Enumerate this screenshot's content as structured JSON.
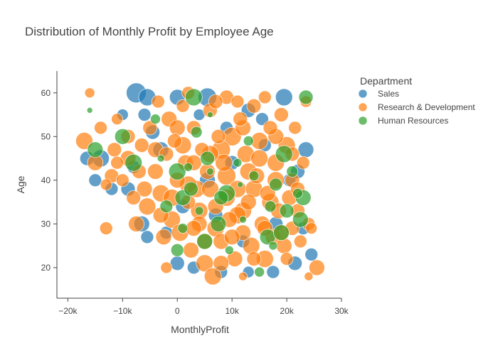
{
  "chart_data": {
    "type": "scatter",
    "title": "Distribution of Monthly Profit by Employee Age",
    "xlabel": "MonthlyProfit",
    "ylabel": "Age",
    "xlim": [
      -22000,
      30000
    ],
    "ylim": [
      13,
      65
    ],
    "x_ticks": [
      -20000,
      -10000,
      0,
      10000,
      20000,
      30000
    ],
    "x_tick_labels": [
      "−20k",
      "−10k",
      "0",
      "10k",
      "20k",
      "30k"
    ],
    "y_ticks": [
      20,
      30,
      40,
      50,
      60
    ],
    "y_tick_labels": [
      "20",
      "30",
      "40",
      "50",
      "60"
    ],
    "grid": false,
    "legend": {
      "title": "Department",
      "position": "top-right"
    },
    "size_encoding": "marker area varies per employee; no size legend shown",
    "series": [
      {
        "name": "Sales",
        "color": "#1f77b4",
        "points": [
          [
            -7500,
            60,
            14
          ],
          [
            -5500,
            59,
            12
          ],
          [
            0,
            59,
            11
          ],
          [
            5500,
            59,
            13
          ],
          [
            19500,
            59,
            12
          ],
          [
            -14000,
            45,
            12
          ],
          [
            -16500,
            45,
            10
          ],
          [
            -15000,
            40,
            9
          ],
          [
            -12000,
            38,
            9
          ],
          [
            -9000,
            38,
            10
          ],
          [
            -6000,
            55,
            9
          ],
          [
            -4500,
            51,
            10
          ],
          [
            -3000,
            47,
            11
          ],
          [
            -6500,
            30,
            11
          ],
          [
            -5500,
            27,
            9
          ],
          [
            0,
            21,
            10
          ],
          [
            3000,
            20,
            9
          ],
          [
            8000,
            19,
            9
          ],
          [
            13000,
            19,
            8
          ],
          [
            17500,
            19,
            9
          ],
          [
            21500,
            21,
            10
          ],
          [
            24500,
            23,
            9
          ],
          [
            23500,
            47,
            11
          ],
          [
            22000,
            42,
            10
          ],
          [
            20500,
            40,
            9
          ],
          [
            13000,
            56,
            10
          ],
          [
            15500,
            54,
            9
          ],
          [
            10000,
            44,
            10
          ],
          [
            5500,
            40,
            11
          ],
          [
            7000,
            32,
            10
          ],
          [
            1000,
            34,
            10
          ],
          [
            -2000,
            28,
            9
          ],
          [
            18000,
            30,
            10
          ],
          [
            23000,
            29,
            9
          ],
          [
            -8000,
            43,
            9
          ],
          [
            9000,
            52,
            9
          ],
          [
            4000,
            55,
            8
          ],
          [
            -10000,
            55,
            8
          ],
          [
            16000,
            48,
            9
          ],
          [
            12000,
            26,
            9
          ]
        ]
      },
      {
        "name": "Research & Development",
        "color": "#ff7f0e",
        "points": [
          [
            -16000,
            60,
            7
          ],
          [
            -17000,
            49,
            12
          ],
          [
            -13000,
            29,
            9
          ],
          [
            -14000,
            52,
            9
          ],
          [
            -15000,
            44,
            11
          ],
          [
            -12000,
            41,
            10
          ],
          [
            -11000,
            54,
            8
          ],
          [
            -11500,
            47,
            10
          ],
          [
            -10000,
            40,
            9
          ],
          [
            -9000,
            45,
            11
          ],
          [
            -8000,
            36,
            10
          ],
          [
            -7500,
            30,
            11
          ],
          [
            -6500,
            48,
            10
          ],
          [
            -5500,
            34,
            12
          ],
          [
            -5000,
            52,
            10
          ],
          [
            -4000,
            42,
            11
          ],
          [
            -3500,
            58,
            9
          ],
          [
            -3000,
            37,
            12
          ],
          [
            -2500,
            27,
            11
          ],
          [
            -2000,
            46,
            10
          ],
          [
            -1500,
            54,
            11
          ],
          [
            -1000,
            31,
            12
          ],
          [
            -500,
            49,
            10
          ],
          [
            0,
            40,
            11
          ],
          [
            500,
            28,
            12
          ],
          [
            1000,
            57,
            9
          ],
          [
            1500,
            44,
            11
          ],
          [
            2000,
            35,
            10
          ],
          [
            2500,
            24,
            11
          ],
          [
            3000,
            52,
            10
          ],
          [
            3500,
            38,
            12
          ],
          [
            4000,
            30,
            11
          ],
          [
            4500,
            47,
            10
          ],
          [
            5000,
            21,
            12
          ],
          [
            5500,
            42,
            11
          ],
          [
            6000,
            56,
            10
          ],
          [
            6500,
            18,
            12
          ],
          [
            7000,
            34,
            11
          ],
          [
            7500,
            50,
            10
          ],
          [
            8000,
            26,
            11
          ],
          [
            8500,
            44,
            12
          ],
          [
            9000,
            59,
            10
          ],
          [
            9500,
            31,
            11
          ],
          [
            10000,
            50,
            13
          ],
          [
            10500,
            22,
            11
          ],
          [
            11000,
            38,
            12
          ],
          [
            11500,
            54,
            10
          ],
          [
            12000,
            28,
            11
          ],
          [
            12500,
            46,
            12
          ],
          [
            13000,
            35,
            11
          ],
          [
            13500,
            25,
            12
          ],
          [
            14000,
            57,
            10
          ],
          [
            14500,
            41,
            11
          ],
          [
            15000,
            49,
            12
          ],
          [
            15500,
            30,
            11
          ],
          [
            16000,
            22,
            12
          ],
          [
            16500,
            37,
            11
          ],
          [
            17000,
            52,
            10
          ],
          [
            17500,
            27,
            11
          ],
          [
            18000,
            44,
            12
          ],
          [
            18500,
            33,
            11
          ],
          [
            19000,
            55,
            10
          ],
          [
            19500,
            25,
            11
          ],
          [
            20000,
            48,
            12
          ],
          [
            20500,
            36,
            11
          ],
          [
            21000,
            29,
            10
          ],
          [
            21500,
            52,
            9
          ],
          [
            22000,
            33,
            10
          ],
          [
            22500,
            26,
            9
          ],
          [
            23000,
            44,
            9
          ],
          [
            23500,
            58,
            8
          ],
          [
            24000,
            30,
            9
          ],
          [
            24500,
            29,
            8
          ],
          [
            25500,
            20,
            11
          ],
          [
            24000,
            18,
            6
          ],
          [
            12000,
            18,
            6
          ],
          [
            -2000,
            20,
            8
          ],
          [
            3000,
            44,
            11
          ],
          [
            6000,
            38,
            12
          ],
          [
            9000,
            41,
            13
          ],
          [
            12000,
            33,
            12
          ],
          [
            15000,
            45,
            12
          ],
          [
            0,
            52,
            11
          ],
          [
            -4000,
            47,
            11
          ],
          [
            18000,
            40,
            12
          ],
          [
            21000,
            40,
            10
          ],
          [
            -7000,
            42,
            10
          ],
          [
            2000,
            60,
            9
          ],
          [
            7000,
            58,
            10
          ],
          [
            11000,
            58,
            9
          ],
          [
            16000,
            59,
            9
          ],
          [
            -9000,
            50,
            10
          ],
          [
            5000,
            26,
            11
          ],
          [
            10000,
            27,
            11
          ],
          [
            14000,
            22,
            10
          ],
          [
            20000,
            22,
            9
          ],
          [
            -6000,
            38,
            11
          ],
          [
            1000,
            48,
            12
          ],
          [
            8000,
            47,
            13
          ],
          [
            13000,
            42,
            12
          ],
          [
            17000,
            35,
            12
          ],
          [
            -1000,
            36,
            12
          ],
          [
            4000,
            33,
            12
          ],
          [
            7000,
            29,
            12
          ],
          [
            11000,
            32,
            12
          ],
          [
            16000,
            29,
            11
          ],
          [
            19000,
            28,
            11
          ],
          [
            22000,
            38,
            10
          ],
          [
            -3000,
            32,
            11
          ],
          [
            2000,
            39,
            12
          ],
          [
            6000,
            46,
            12
          ],
          [
            9000,
            36,
            12
          ],
          [
            14000,
            38,
            12
          ],
          [
            -11000,
            44,
            9
          ],
          [
            -13000,
            39,
            8
          ],
          [
            3000,
            29,
            11
          ],
          [
            8000,
            21,
            11
          ],
          [
            12000,
            52,
            11
          ],
          [
            18000,
            50,
            11
          ],
          [
            21000,
            46,
            10
          ]
        ]
      },
      {
        "name": "Human Resources",
        "color": "#2ca02c",
        "points": [
          [
            -16000,
            56,
            4
          ],
          [
            -15000,
            47,
            11
          ],
          [
            -10000,
            50,
            11
          ],
          [
            -8000,
            44,
            12
          ],
          [
            -4000,
            54,
            7
          ],
          [
            -3000,
            45,
            5
          ],
          [
            -2000,
            34,
            9
          ],
          [
            0,
            42,
            12
          ],
          [
            0,
            24,
            9
          ],
          [
            1000,
            36,
            11
          ],
          [
            1000,
            29,
            7
          ],
          [
            2000,
            43,
            6
          ],
          [
            2500,
            38,
            10
          ],
          [
            3000,
            59,
            12
          ],
          [
            3500,
            51,
            8
          ],
          [
            4000,
            33,
            6
          ],
          [
            5000,
            26,
            11
          ],
          [
            5500,
            45,
            10
          ],
          [
            6000,
            42,
            5
          ],
          [
            6000,
            55,
            4
          ],
          [
            7500,
            30,
            11
          ],
          [
            9000,
            37,
            12
          ],
          [
            9500,
            24,
            6
          ],
          [
            11000,
            44,
            6
          ],
          [
            11500,
            39,
            4
          ],
          [
            12000,
            31,
            5
          ],
          [
            14000,
            41,
            7
          ],
          [
            15000,
            19,
            7
          ],
          [
            16500,
            27,
            11
          ],
          [
            17000,
            34,
            8
          ],
          [
            17500,
            25,
            6
          ],
          [
            19000,
            28,
            11
          ],
          [
            19500,
            46,
            12
          ],
          [
            20000,
            33,
            10
          ],
          [
            21000,
            42,
            8
          ],
          [
            22000,
            37,
            7
          ],
          [
            22500,
            31,
            11
          ],
          [
            23000,
            36,
            11
          ],
          [
            23500,
            59,
            10
          ],
          [
            18000,
            39,
            9
          ],
          [
            8000,
            36,
            10
          ],
          [
            13000,
            49,
            7
          ]
        ]
      }
    ]
  }
}
